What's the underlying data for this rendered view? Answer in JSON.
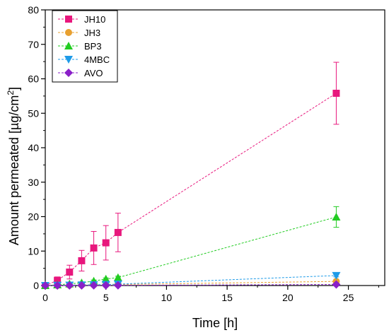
{
  "chart_data": {
    "type": "scatter",
    "title": "",
    "xlabel": "Time [h]",
    "ylabel": "Amount permeated [µg/cm²]",
    "ylabel_main": "Amount permeated [µg/cm",
    "ylabel_sup": "2",
    "ylabel_end": "]",
    "xlim": [
      0,
      28
    ],
    "ylim": [
      0,
      80
    ],
    "xticks": [
      0,
      5,
      10,
      15,
      20,
      25
    ],
    "yticks": [
      0,
      10,
      20,
      30,
      40,
      50,
      60,
      70,
      80
    ],
    "grid": false,
    "legend_position": "top-left",
    "series": [
      {
        "name": "JH10",
        "color": "#e8177d",
        "marker": "square",
        "x": [
          0,
          1,
          2,
          3,
          4,
          5,
          6,
          24
        ],
        "y": [
          0,
          1.5,
          3.9,
          7.2,
          10.9,
          12.4,
          15.4,
          55.8
        ],
        "err": [
          0,
          1.0,
          2.0,
          3.0,
          4.8,
          5.0,
          5.6,
          9.0
        ]
      },
      {
        "name": "JH3",
        "color": "#e8a030",
        "marker": "circle",
        "x": [
          0,
          1,
          2,
          3,
          4,
          5,
          6,
          24
        ],
        "y": [
          0,
          0.05,
          0.1,
          0.15,
          0.2,
          0.25,
          0.3,
          1.2
        ],
        "err": [
          0,
          0,
          0,
          0,
          0,
          0,
          0,
          0.3
        ]
      },
      {
        "name": "BP3",
        "color": "#22cc22",
        "marker": "triangle-up",
        "x": [
          0,
          1,
          2,
          3,
          4,
          5,
          6,
          24
        ],
        "y": [
          0,
          0.2,
          0.5,
          0.8,
          1.3,
          1.9,
          2.3,
          19.9
        ],
        "err": [
          0,
          0,
          0,
          0.2,
          0.3,
          0.3,
          0.4,
          3.0
        ]
      },
      {
        "name": "4MBC",
        "color": "#1e9be8",
        "marker": "triangle-down",
        "x": [
          0,
          1,
          2,
          3,
          4,
          5,
          6,
          24
        ],
        "y": [
          0,
          0.05,
          0.1,
          0.15,
          0.2,
          0.3,
          0.4,
          2.9
        ],
        "err": [
          0,
          0,
          0,
          0,
          0,
          0,
          0,
          0.4
        ]
      },
      {
        "name": "AVO",
        "color": "#8a1fc8",
        "marker": "diamond",
        "x": [
          0,
          1,
          2,
          3,
          4,
          5,
          6,
          24
        ],
        "y": [
          0,
          0,
          0.02,
          0.03,
          0.04,
          0.05,
          0.06,
          0.3
        ],
        "err": [
          0,
          0,
          0,
          0,
          0,
          0,
          0,
          0.1
        ]
      }
    ]
  }
}
